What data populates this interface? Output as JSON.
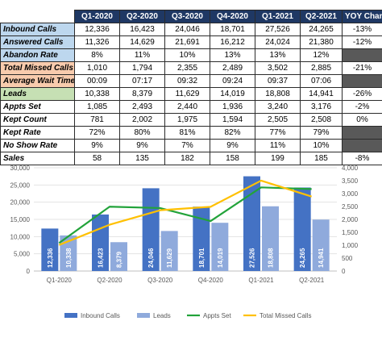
{
  "table": {
    "headers": [
      "",
      "Q1-2020",
      "Q2-2020",
      "Q3-2020",
      "Q4-2020",
      "Q1-2021",
      "Q2-2021",
      "YOY Change"
    ],
    "rows": [
      {
        "metric": "Inbound Calls",
        "values": [
          "12,336",
          "16,423",
          "24,046",
          "18,701",
          "27,526",
          "24,265"
        ],
        "yoy": "-13%",
        "highlight": "blue"
      },
      {
        "metric": "Answered Calls",
        "values": [
          "11,326",
          "14,629",
          "21,691",
          "16,212",
          "24,024",
          "21,380"
        ],
        "yoy": "-12%",
        "highlight": "blue"
      },
      {
        "metric": "Abandon Rate",
        "values": [
          "8%",
          "11%",
          "10%",
          "13%",
          "13%",
          "12%"
        ],
        "yoy": "",
        "highlight": "blue"
      },
      {
        "metric": "Total Missed Calls",
        "values": [
          "1,010",
          "1,794",
          "2,355",
          "2,489",
          "3,502",
          "2,885"
        ],
        "yoy": "-21%",
        "highlight": "orange"
      },
      {
        "metric": "Average Wait Time",
        "values": [
          "00:09",
          "07:17",
          "09:32",
          "09:24",
          "09:37",
          "07:06"
        ],
        "yoy": "",
        "highlight": "orange"
      },
      {
        "metric": "Leads",
        "values": [
          "10,338",
          "8,379",
          "11,629",
          "14,019",
          "18,808",
          "14,941"
        ],
        "yoy": "-26%",
        "highlight": "green"
      },
      {
        "metric": "Appts Set",
        "values": [
          "1,085",
          "2,493",
          "2,440",
          "1,936",
          "3,240",
          "3,176"
        ],
        "yoy": "-2%",
        "highlight": "none"
      },
      {
        "metric": "Kept Count",
        "values": [
          "781",
          "2,002",
          "1,975",
          "1,594",
          "2,505",
          "2,508"
        ],
        "yoy": "0%",
        "highlight": "none"
      },
      {
        "metric": "Kept Rate",
        "values": [
          "72%",
          "80%",
          "81%",
          "82%",
          "77%",
          "79%"
        ],
        "yoy": "",
        "highlight": "none"
      },
      {
        "metric": "No Show Rate",
        "values": [
          "9%",
          "9%",
          "7%",
          "9%",
          "11%",
          "10%"
        ],
        "yoy": "",
        "highlight": "none"
      },
      {
        "metric": "Sales",
        "values": [
          "58",
          "135",
          "182",
          "158",
          "199",
          "185"
        ],
        "yoy": "-8%",
        "highlight": "none"
      }
    ]
  },
  "colors": {
    "header_bg": "#1f3864",
    "inbound": "#4472c4",
    "leads": "#8faadc",
    "appts": "#22a33a",
    "missed": "#ffc000"
  },
  "chart_data": {
    "type": "bar",
    "categories": [
      "Q1-2020",
      "Q2-2020",
      "Q3-2020",
      "Q4-2020",
      "Q1-2021",
      "Q2-2021"
    ],
    "series": [
      {
        "name": "Inbound Calls",
        "type": "bar",
        "axis": "left",
        "values": [
          12336,
          16423,
          24046,
          18701,
          27526,
          24265
        ],
        "labels": [
          "12,336",
          "16,423",
          "24,046",
          "18,701",
          "27,526",
          "24,265"
        ]
      },
      {
        "name": "Leads",
        "type": "bar",
        "axis": "left",
        "values": [
          10338,
          8379,
          11629,
          14019,
          18808,
          14941
        ],
        "labels": [
          "10,338",
          "8,379",
          "11,629",
          "14,019",
          "18,808",
          "14,941"
        ]
      },
      {
        "name": "Appts Set",
        "type": "line",
        "axis": "right",
        "values": [
          1085,
          2493,
          2440,
          1936,
          3240,
          3176
        ]
      },
      {
        "name": "Total Missed Calls",
        "type": "line",
        "axis": "right",
        "values": [
          1010,
          1794,
          2355,
          2489,
          3502,
          2885
        ]
      }
    ],
    "yleft": {
      "min": 0,
      "max": 30000,
      "ticks": [
        "0",
        "5,000",
        "10,000",
        "15,000",
        "20,000",
        "25,000",
        "30,000"
      ]
    },
    "yright": {
      "min": 0,
      "max": 4000,
      "ticks": [
        "0",
        "500",
        "1,000",
        "1,500",
        "2,000",
        "2,500",
        "3,000",
        "3,500",
        "4,000"
      ]
    },
    "grid": true,
    "legend_position": "bottom"
  }
}
